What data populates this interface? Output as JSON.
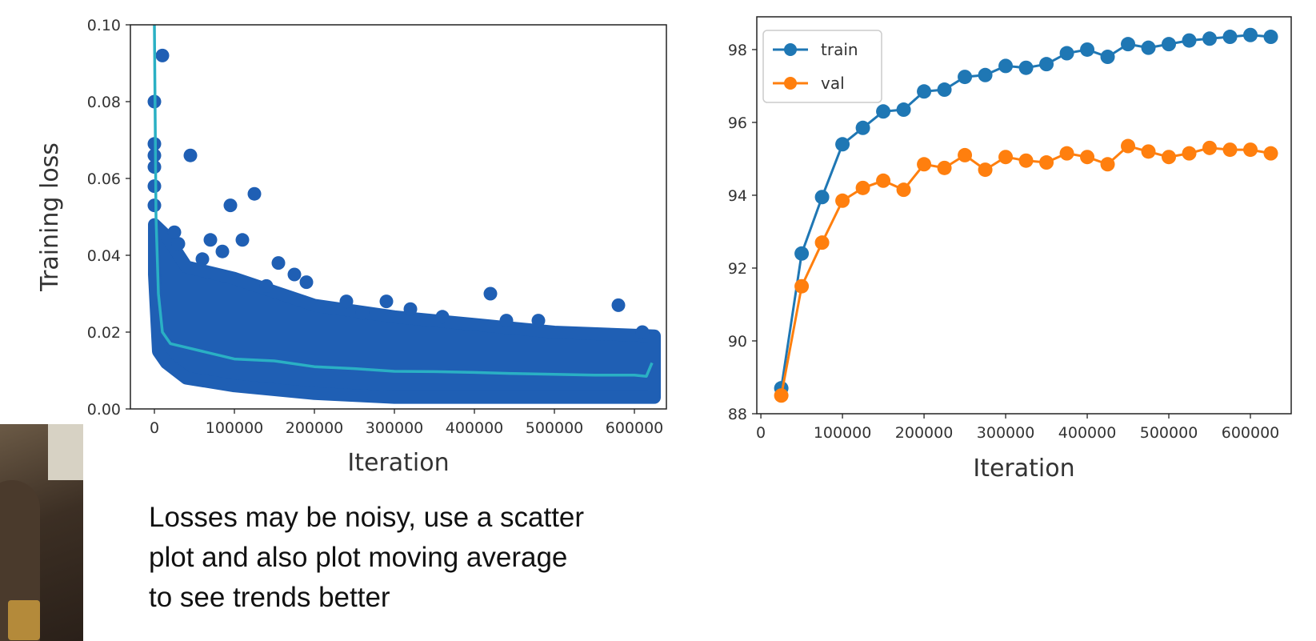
{
  "chart_data": [
    {
      "type": "scatter",
      "xlabel": "Iteration",
      "ylabel": "Training loss",
      "xlim": [
        -30000,
        640000
      ],
      "ylim": [
        0,
        0.1
      ],
      "xticks": [
        0,
        100000,
        200000,
        300000,
        400000,
        500000,
        600000
      ],
      "xtick_labels": [
        "0",
        "100000",
        "200000",
        "300000",
        "400000",
        "500000",
        "600000"
      ],
      "yticks": [
        0,
        0.02,
        0.04,
        0.06,
        0.08,
        0.1
      ],
      "ytick_labels": [
        "0.00",
        "0.02",
        "0.04",
        "0.06",
        "0.08",
        "0.10"
      ],
      "grid": false,
      "colors": {
        "scatter": "#1f5fb4",
        "moving_average": "#2ab0c4"
      },
      "band_lower": [
        [
          0,
          0.035
        ],
        [
          5000,
          0.015
        ],
        [
          15000,
          0.012
        ],
        [
          40000,
          0.008
        ],
        [
          100000,
          0.006
        ],
        [
          200000,
          0.004
        ],
        [
          300000,
          0.003
        ],
        [
          400000,
          0.003
        ],
        [
          500000,
          0.003
        ],
        [
          625000,
          0.003
        ]
      ],
      "band_upper": [
        [
          0,
          0.048
        ],
        [
          5000,
          0.047
        ],
        [
          15000,
          0.045
        ],
        [
          40000,
          0.037
        ],
        [
          100000,
          0.034
        ],
        [
          200000,
          0.027
        ],
        [
          300000,
          0.024
        ],
        [
          400000,
          0.022
        ],
        [
          500000,
          0.02
        ],
        [
          625000,
          0.019
        ]
      ],
      "scatter_points": [
        [
          10000,
          0.092
        ],
        [
          0,
          0.08
        ],
        [
          45000,
          0.066
        ],
        [
          0,
          0.069
        ],
        [
          0,
          0.066
        ],
        [
          0,
          0.063
        ],
        [
          0,
          0.058
        ],
        [
          0,
          0.053
        ],
        [
          125000,
          0.056
        ],
        [
          95000,
          0.053
        ],
        [
          70000,
          0.044
        ],
        [
          110000,
          0.044
        ],
        [
          30000,
          0.043
        ],
        [
          25000,
          0.046
        ],
        [
          155000,
          0.038
        ],
        [
          60000,
          0.039
        ],
        [
          85000,
          0.041
        ],
        [
          140000,
          0.032
        ],
        [
          175000,
          0.035
        ],
        [
          190000,
          0.033
        ],
        [
          240000,
          0.028
        ],
        [
          290000,
          0.028
        ],
        [
          320000,
          0.026
        ],
        [
          420000,
          0.03
        ],
        [
          440000,
          0.023
        ],
        [
          580000,
          0.027
        ],
        [
          360000,
          0.024
        ],
        [
          480000,
          0.023
        ],
        [
          260000,
          0.025
        ],
        [
          610000,
          0.02
        ]
      ],
      "moving_average": [
        [
          0,
          0.1
        ],
        [
          2000,
          0.05
        ],
        [
          5000,
          0.03
        ],
        [
          10000,
          0.02
        ],
        [
          20000,
          0.017
        ],
        [
          40000,
          0.016
        ],
        [
          60000,
          0.015
        ],
        [
          100000,
          0.013
        ],
        [
          150000,
          0.0125
        ],
        [
          200000,
          0.011
        ],
        [
          250000,
          0.0105
        ],
        [
          300000,
          0.0098
        ],
        [
          350000,
          0.0097
        ],
        [
          400000,
          0.0095
        ],
        [
          450000,
          0.0092
        ],
        [
          500000,
          0.009
        ],
        [
          550000,
          0.0088
        ],
        [
          600000,
          0.0088
        ],
        [
          615000,
          0.0085
        ],
        [
          622000,
          0.012
        ]
      ]
    },
    {
      "type": "line",
      "xlabel": "Iteration",
      "ylabel": "",
      "xlim": [
        -5000,
        650000
      ],
      "ylim": [
        88,
        98.9
      ],
      "xticks": [
        0,
        100000,
        200000,
        300000,
        400000,
        500000,
        600000
      ],
      "xtick_labels": [
        "0",
        "100000",
        "200000",
        "300000",
        "400000",
        "500000",
        "600000"
      ],
      "yticks": [
        88,
        90,
        92,
        94,
        96,
        98
      ],
      "ytick_labels": [
        "88",
        "90",
        "92",
        "94",
        "96",
        "98"
      ],
      "grid": false,
      "legend_position": "top-left",
      "x": [
        25000,
        50000,
        75000,
        100000,
        125000,
        150000,
        175000,
        200000,
        225000,
        250000,
        275000,
        300000,
        325000,
        350000,
        375000,
        400000,
        425000,
        450000,
        475000,
        500000,
        525000,
        550000,
        575000,
        600000,
        625000
      ],
      "series": [
        {
          "name": "train",
          "color": "#1f77b4",
          "values": [
            88.7,
            92.4,
            93.95,
            95.4,
            95.85,
            96.3,
            96.35,
            96.85,
            96.9,
            97.25,
            97.3,
            97.55,
            97.5,
            97.6,
            97.9,
            98.0,
            97.8,
            98.15,
            98.05,
            98.15,
            98.25,
            98.3,
            98.35,
            98.4,
            98.35
          ]
        },
        {
          "name": "val",
          "color": "#ff7f0e",
          "values": [
            88.5,
            91.5,
            92.7,
            93.85,
            94.2,
            94.4,
            94.15,
            94.85,
            94.75,
            95.1,
            94.7,
            95.05,
            94.95,
            94.9,
            95.15,
            95.05,
            94.85,
            95.35,
            95.2,
            95.05,
            95.15,
            95.3,
            95.25,
            95.25,
            95.15
          ]
        }
      ]
    }
  ],
  "caption_lines": [
    "Losses may be noisy, use a scatter",
    "plot and also plot moving average",
    "to see trends better"
  ]
}
